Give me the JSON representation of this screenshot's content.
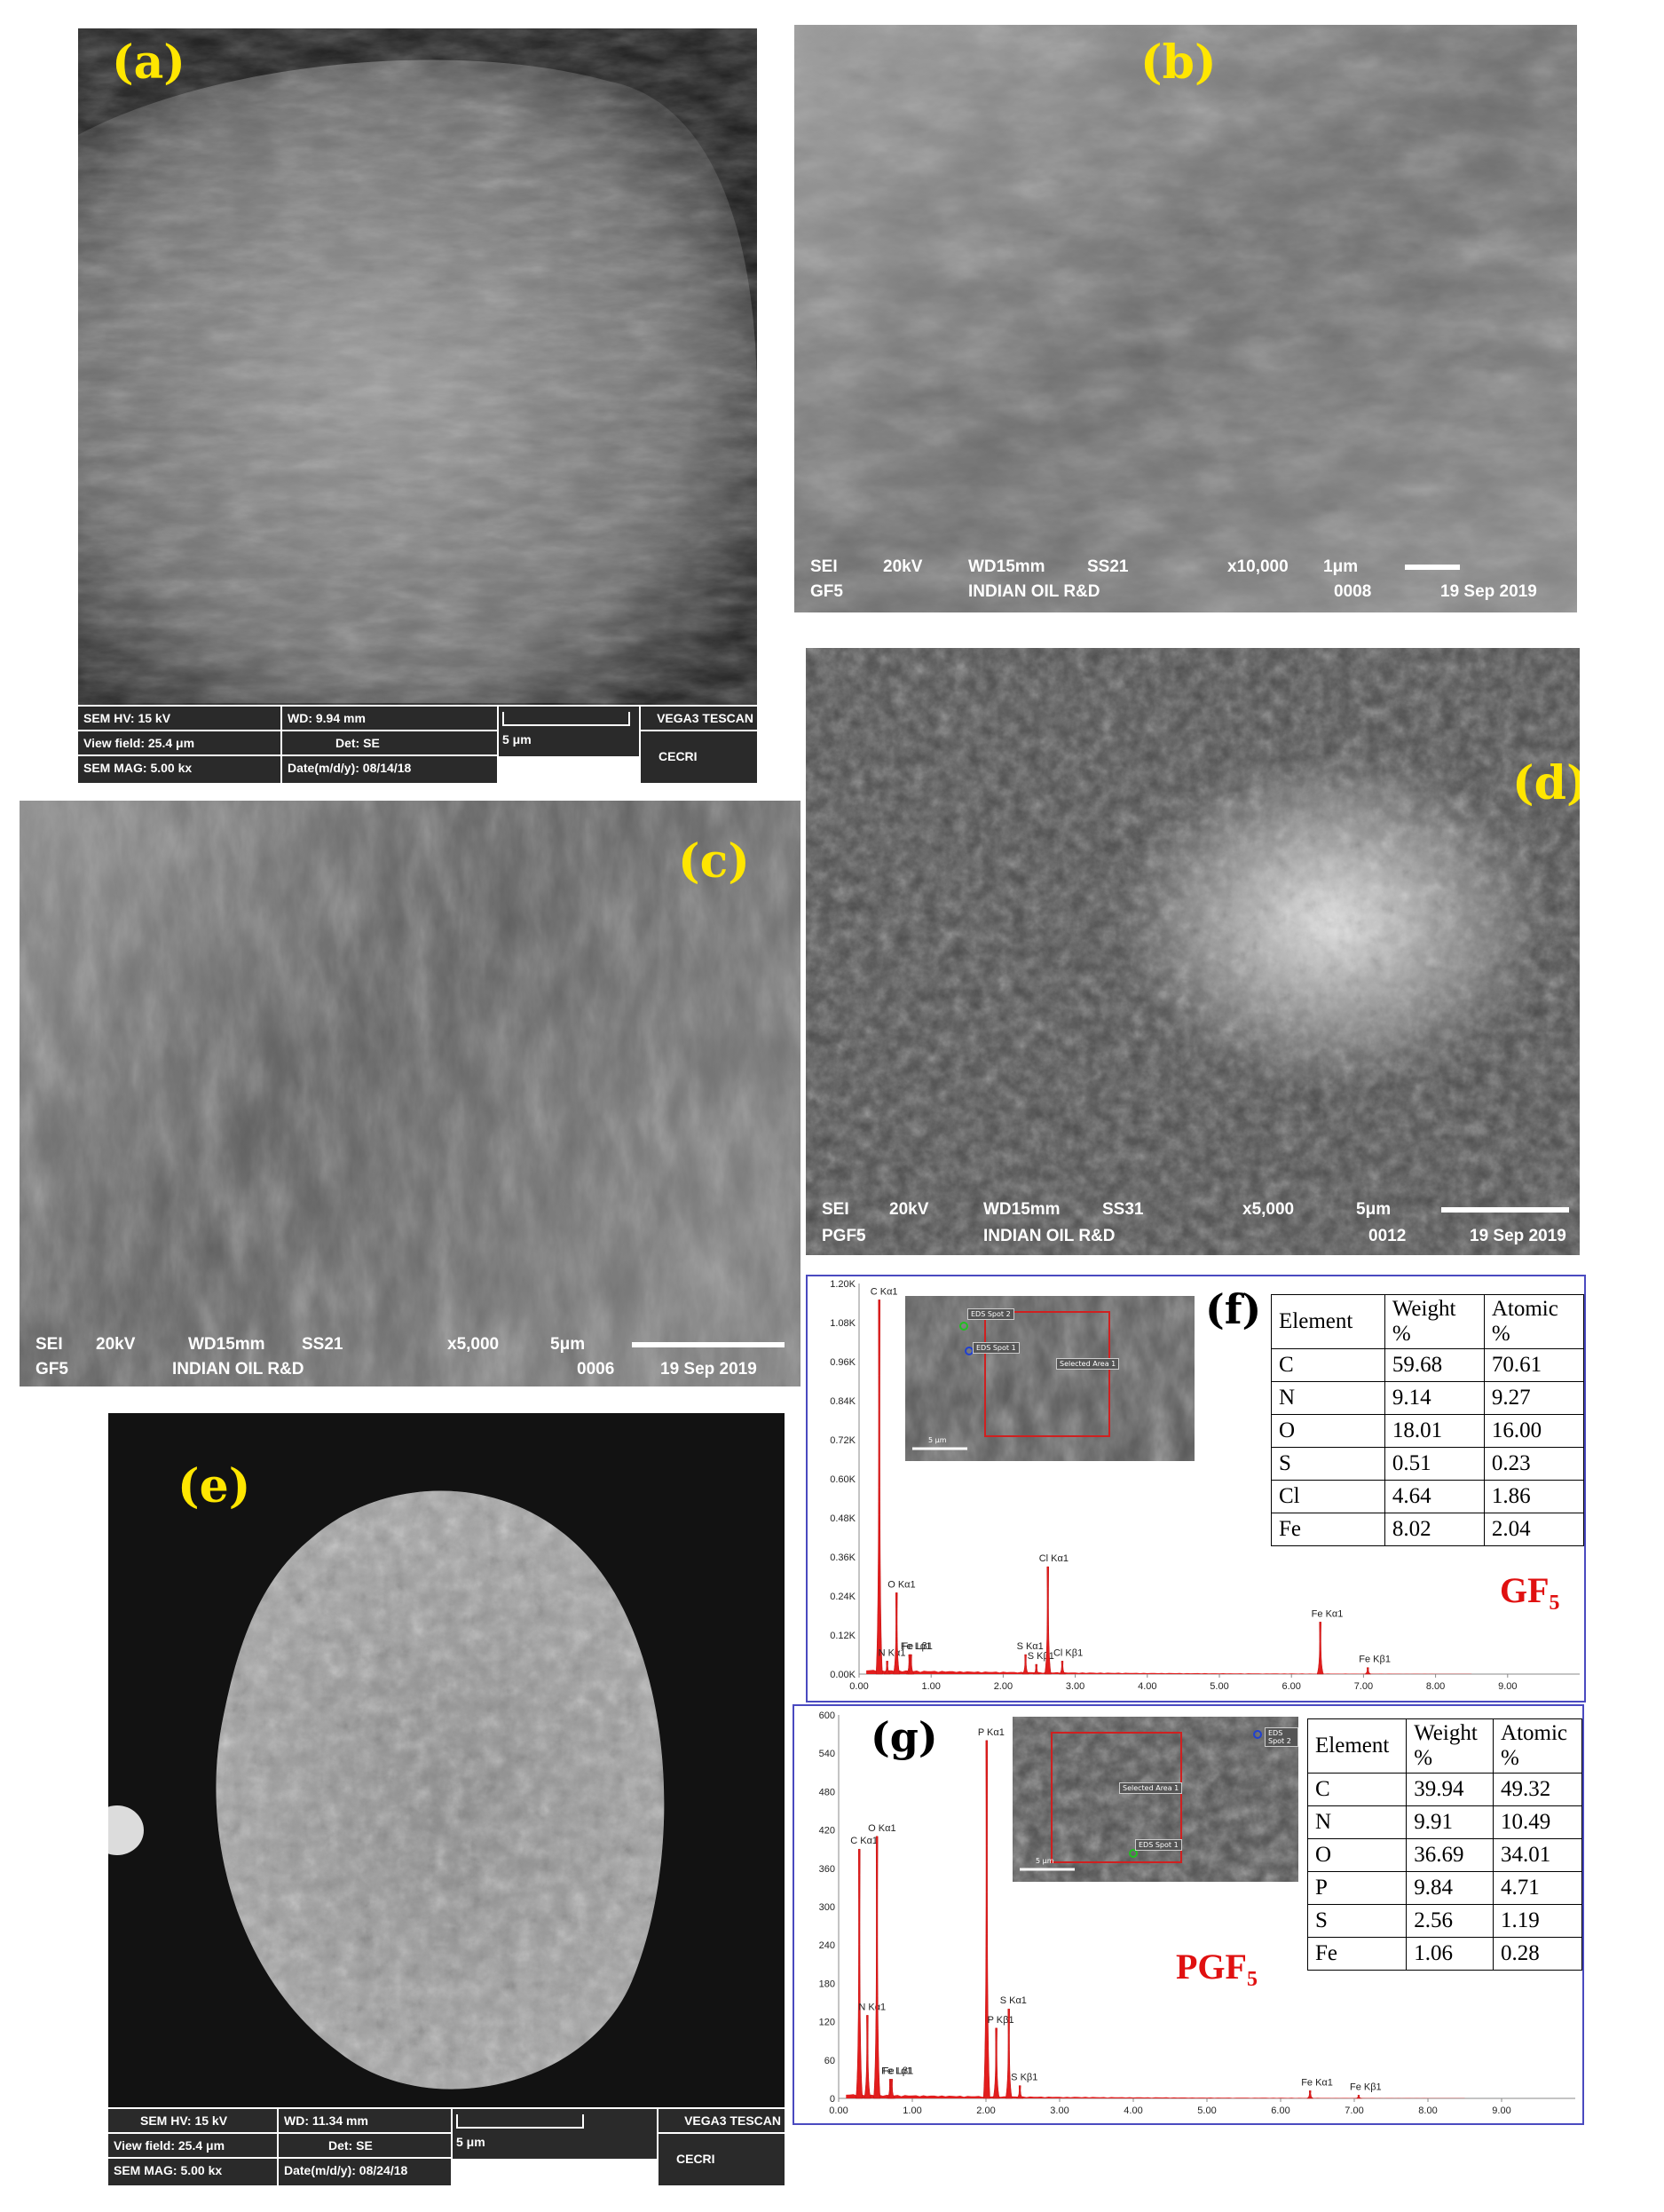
{
  "panels": {
    "a": {
      "label": "(a)",
      "footer": {
        "hv": "SEM HV: 15 kV",
        "wd": "WD: 9.94 mm",
        "scale": "5 μm",
        "brand": "VEGA3 TESCAN",
        "view": "View field: 25.4 μm",
        "det": "Det: SE",
        "mag": "SEM MAG: 5.00 kx",
        "date": "Date(m/d/y): 08/14/18",
        "org": "CECRI"
      }
    },
    "b": {
      "label": "(b)",
      "footer": {
        "mode": "SEI",
        "kv": "20kV",
        "wd": "WD15mm",
        "ss": "SS21",
        "mag": "x10,000",
        "scale": "1μm",
        "sample": "GF5",
        "org": "INDIAN OIL R&D",
        "num": "0008",
        "date": "19 Sep 2019"
      }
    },
    "c": {
      "label": "(c)",
      "footer": {
        "mode": "SEI",
        "kv": "20kV",
        "wd": "WD15mm",
        "ss": "SS21",
        "mag": "x5,000",
        "scale": "5μm",
        "sample": "GF5",
        "org": "INDIAN OIL R&D",
        "num": "0006",
        "date": "19 Sep 2019"
      }
    },
    "d": {
      "label": "(d)",
      "footer": {
        "mode": "SEI",
        "kv": "20kV",
        "wd": "WD15mm",
        "ss": "SS31",
        "mag": "x5,000",
        "scale": "5μm",
        "sample": "PGF5",
        "org": "INDIAN OIL R&D",
        "num": "0012",
        "date": "19 Sep 2019"
      }
    },
    "e": {
      "label": "(e)",
      "footer": {
        "hv": "SEM HV: 15 kV",
        "wd": "WD: 11.34 mm",
        "scale": "5 μm",
        "brand": "VEGA3 TESCAN",
        "view": "View field: 25.4 μm",
        "det": "Det: SE",
        "mag": "SEM MAG: 5.00 kx",
        "date": "Date(m/d/y): 08/24/18",
        "org": "CECRI"
      }
    },
    "f": {
      "label": "(f)",
      "sample_tag": "GF₅",
      "table_header": [
        "Element",
        "Weight %",
        "Atomic %"
      ],
      "table_rows": [
        [
          "C",
          "59.68",
          "70.61"
        ],
        [
          "N",
          "9.14",
          "9.27"
        ],
        [
          "O",
          "18.01",
          "16.00"
        ],
        [
          "S",
          "0.51",
          "0.23"
        ],
        [
          "Cl",
          "4.64",
          "1.86"
        ],
        [
          "Fe",
          "8.02",
          "2.04"
        ]
      ],
      "inset_labels": [
        "EDS Spot 2",
        "EDS Spot 1",
        "Selected Area 1",
        "5 μm"
      ]
    },
    "g": {
      "label": "(g)",
      "sample_tag": "PGF₅",
      "table_header": [
        "Element",
        "Weight %",
        "Atomic %"
      ],
      "table_rows": [
        [
          "C",
          "39.94",
          "49.32"
        ],
        [
          "N",
          "9.91",
          "10.49"
        ],
        [
          "O",
          "36.69",
          "34.01"
        ],
        [
          "P",
          "9.84",
          "4.71"
        ],
        [
          "S",
          "2.56",
          "1.19"
        ],
        [
          "Fe",
          "1.06",
          "0.28"
        ]
      ],
      "inset_labels": [
        "EDS Spot 2",
        "Selected Area 1",
        "EDS Spot 1",
        "5 μm"
      ]
    }
  },
  "chart_data": [
    {
      "type": "line",
      "panel": "f",
      "x_ticks": [
        "0.00",
        "1.00",
        "2.00",
        "3.00",
        "4.00",
        "5.00",
        "6.00",
        "7.00",
        "8.00",
        "9.00"
      ],
      "y_ticks": [
        "0.00K",
        "0.12K",
        "0.24K",
        "0.36K",
        "0.48K",
        "0.60K",
        "0.72K",
        "0.84K",
        "0.96K",
        "1.08K",
        "1.20K"
      ],
      "xlim": [
        0,
        10
      ],
      "ylim": [
        0,
        1200
      ],
      "peaks": [
        {
          "x": 0.28,
          "y": 1150,
          "label": "C Kα1"
        },
        {
          "x": 0.39,
          "y": 40,
          "label": "N Kα1"
        },
        {
          "x": 0.52,
          "y": 250,
          "label": "O Kα1"
        },
        {
          "x": 0.7,
          "y": 60,
          "label": "Fe Lα1"
        },
        {
          "x": 0.72,
          "y": 60,
          "label": "Fe Lβ1"
        },
        {
          "x": 2.31,
          "y": 60,
          "label": "S Kα1"
        },
        {
          "x": 2.46,
          "y": 30,
          "label": "S Kβ1"
        },
        {
          "x": 2.62,
          "y": 330,
          "label": "Cl Kα1"
        },
        {
          "x": 2.82,
          "y": 40,
          "label": "Cl Kβ1"
        },
        {
          "x": 6.4,
          "y": 160,
          "label": "Fe Kα1"
        },
        {
          "x": 7.06,
          "y": 20,
          "label": "Fe Kβ1"
        }
      ]
    },
    {
      "type": "line",
      "panel": "g",
      "x_ticks": [
        "0.00",
        "1.00",
        "2.00",
        "3.00",
        "4.00",
        "5.00",
        "6.00",
        "7.00",
        "8.00",
        "9.00"
      ],
      "y_ticks": [
        "0",
        "60",
        "120",
        "180",
        "240",
        "300",
        "360",
        "420",
        "480",
        "540",
        "600"
      ],
      "xlim": [
        0,
        10
      ],
      "ylim": [
        0,
        600
      ],
      "peaks": [
        {
          "x": 0.28,
          "y": 390,
          "label": "C Kα1"
        },
        {
          "x": 0.39,
          "y": 130,
          "label": "N Kα1"
        },
        {
          "x": 0.52,
          "y": 410,
          "label": "O Kα1"
        },
        {
          "x": 0.7,
          "y": 30,
          "label": "Fe Lα1"
        },
        {
          "x": 0.72,
          "y": 30,
          "label": "Fe Lβ1"
        },
        {
          "x": 2.01,
          "y": 560,
          "label": "P Kα1"
        },
        {
          "x": 2.14,
          "y": 110,
          "label": "P Kβ1"
        },
        {
          "x": 2.31,
          "y": 140,
          "label": "S Kα1"
        },
        {
          "x": 2.46,
          "y": 20,
          "label": "S Kβ1"
        },
        {
          "x": 6.4,
          "y": 12,
          "label": "Fe Kα1"
        },
        {
          "x": 7.06,
          "y": 5,
          "label": "Fe Kβ1"
        }
      ]
    }
  ]
}
